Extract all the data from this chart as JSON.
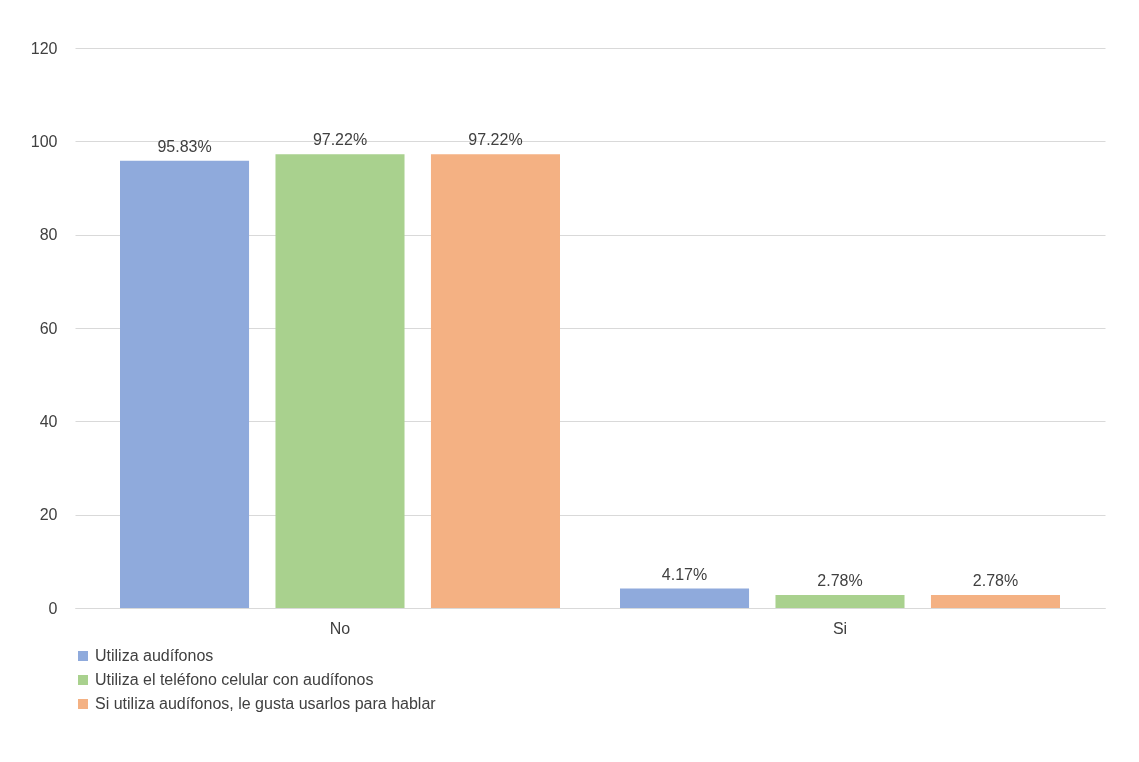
{
  "chart_data": {
    "type": "bar",
    "categories": [
      "No",
      "Si"
    ],
    "series": [
      {
        "name": "Utiliza audífonos",
        "color": "#8faadc",
        "values": [
          95.83,
          4.17
        ],
        "value_labels": [
          "95.83%",
          "4.17%"
        ]
      },
      {
        "name": "Utiliza el teléfono celular con audífonos",
        "color": "#a9d18e",
        "values": [
          97.22,
          2.78
        ],
        "value_labels": [
          "97.22%",
          "2.78%"
        ]
      },
      {
        "name": "Si utiliza audífonos, le gusta usarlos para hablar",
        "color": "#f4b183",
        "values": [
          97.22,
          2.78
        ],
        "value_labels": [
          "97.22%",
          "2.78%"
        ]
      }
    ],
    "ylim": [
      0,
      120
    ],
    "yticks": [
      0,
      20,
      40,
      60,
      80,
      100,
      120
    ],
    "grid": "y",
    "legend": "bottom left"
  }
}
